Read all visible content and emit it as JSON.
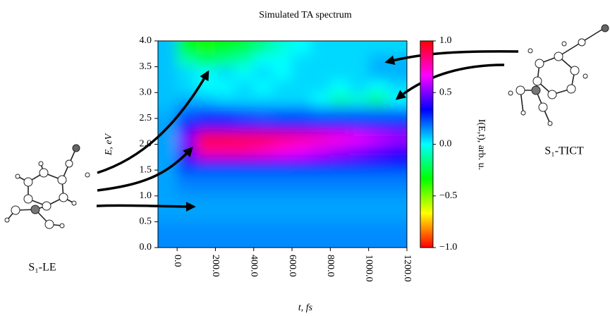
{
  "chart_data": {
    "type": "heatmap",
    "title": "Simulated TA spectrum",
    "x_label": "t, fs",
    "y_label": "E, eV",
    "colorbar_label": "I(E,t), arb. u.",
    "x": [
      -50,
      50,
      150,
      250,
      350,
      450,
      550,
      650,
      750,
      850,
      950,
      1050,
      1150
    ],
    "y": [
      0.125,
      0.375,
      0.625,
      0.875,
      1.125,
      1.375,
      1.625,
      1.875,
      2.125,
      2.375,
      2.625,
      2.875,
      3.125,
      3.375,
      3.625,
      3.875
    ],
    "z": [
      [
        0.15,
        0.15,
        0.15,
        0.15,
        0.15,
        0.15,
        0.15,
        0.15,
        0.15,
        0.15,
        0.15,
        0.15,
        0.15
      ],
      [
        0.15,
        0.15,
        0.15,
        0.15,
        0.15,
        0.15,
        0.15,
        0.15,
        0.15,
        0.15,
        0.15,
        0.15,
        0.15
      ],
      [
        0.12,
        0.12,
        0.12,
        0.12,
        0.12,
        0.12,
        0.12,
        0.12,
        0.12,
        0.12,
        0.12,
        0.12,
        0.12
      ],
      [
        0.12,
        0.12,
        0.12,
        0.12,
        0.12,
        0.12,
        0.12,
        0.12,
        0.12,
        0.12,
        0.12,
        0.12,
        0.12
      ],
      [
        0.12,
        0.15,
        0.15,
        0.15,
        0.15,
        0.15,
        0.15,
        0.15,
        0.15,
        0.15,
        0.15,
        0.15,
        0.15
      ],
      [
        0.12,
        0.18,
        0.18,
        0.18,
        0.18,
        0.18,
        0.18,
        0.18,
        0.18,
        0.18,
        0.18,
        0.18,
        0.18
      ],
      [
        0.12,
        0.3,
        0.35,
        0.35,
        0.35,
        0.35,
        0.35,
        0.33,
        0.33,
        0.32,
        0.3,
        0.3,
        0.3
      ],
      [
        0.12,
        0.45,
        0.8,
        0.8,
        0.8,
        0.75,
        0.7,
        0.65,
        0.6,
        0.55,
        0.5,
        0.45,
        0.4
      ],
      [
        0.12,
        0.5,
        0.95,
        0.95,
        0.9,
        0.9,
        0.85,
        0.8,
        0.75,
        0.7,
        0.65,
        0.6,
        0.55
      ],
      [
        0.12,
        0.35,
        0.4,
        0.4,
        0.4,
        0.4,
        0.35,
        0.35,
        0.35,
        0.35,
        0.3,
        0.3,
        0.3
      ],
      [
        0.1,
        0.2,
        0.25,
        0.25,
        0.22,
        0.2,
        0.2,
        0.2,
        0.18,
        0.18,
        0.18,
        0.18,
        0.18
      ],
      [
        0.08,
        0.1,
        0.08,
        0.05,
        0.05,
        0.05,
        0.05,
        0.05,
        0.0,
        -0.1,
        -0.05,
        -0.15,
        0.0
      ],
      [
        0.08,
        0.05,
        0.0,
        0.0,
        0.05,
        0.0,
        0.05,
        0.05,
        0.05,
        0.0,
        0.05,
        0.0,
        0.05
      ],
      [
        0.08,
        0.05,
        0.0,
        0.05,
        0.0,
        0.05,
        0.0,
        0.05,
        0.05,
        0.05,
        0.05,
        0.1,
        0.1
      ],
      [
        0.08,
        -0.1,
        -0.2,
        -0.15,
        -0.1,
        0.0,
        0.0,
        0.05,
        0.05,
        0.05,
        0.05,
        0.1,
        0.1
      ],
      [
        0.08,
        -0.3,
        -0.35,
        -0.3,
        -0.25,
        -0.15,
        -0.05,
        0.0,
        0.05,
        0.05,
        0.05,
        0.05,
        0.05
      ]
    ],
    "xlim": [
      -100,
      1200
    ],
    "ylim": [
      0,
      4
    ],
    "zlim": [
      -1,
      1
    ],
    "xticks": [
      {
        "value": 0,
        "label": "0.0"
      },
      {
        "value": 200,
        "label": "200.0"
      },
      {
        "value": 400,
        "label": "400.0"
      },
      {
        "value": 600,
        "label": "600.0"
      },
      {
        "value": 800,
        "label": "800.0"
      },
      {
        "value": 1000,
        "label": "1000.0"
      },
      {
        "value": 1200,
        "label": "1200.0"
      }
    ],
    "yticks": [
      {
        "value": 0,
        "label": "0.0"
      },
      {
        "value": 0.5,
        "label": "0.5"
      },
      {
        "value": 1,
        "label": "1.0"
      },
      {
        "value": 1.5,
        "label": "1.5"
      },
      {
        "value": 2,
        "label": "2.0"
      },
      {
        "value": 2.5,
        "label": "2.5"
      },
      {
        "value": 3,
        "label": "3.0"
      },
      {
        "value": 3.5,
        "label": "3.5"
      },
      {
        "value": 4,
        "label": "4.0"
      }
    ],
    "zticks": [
      {
        "value": -1,
        "label": "−1.0"
      },
      {
        "value": -0.5,
        "label": "−0.5"
      },
      {
        "value": 0,
        "label": "0.0"
      },
      {
        "value": 0.5,
        "label": "0.5"
      },
      {
        "value": 1,
        "label": "1.0"
      }
    ],
    "colorscale": [
      "#ff0000",
      "#ffff00",
      "#00ff00",
      "#00ffff",
      "#0000ff",
      "#ff00ff",
      "#ff0000"
    ],
    "annotations": [
      "S₁-LE",
      "S₁-TICT"
    ]
  }
}
